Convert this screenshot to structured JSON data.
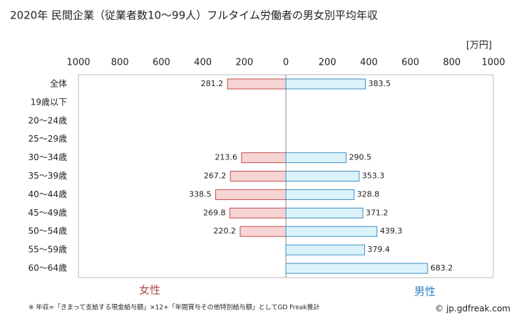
{
  "chart_data": {
    "type": "butterfly",
    "title": "2020年 民間企業（従業者数10〜99人）フルタイム労働者の男女別平均年収",
    "unit": "[万円]",
    "categories": [
      "全体",
      "19歳以下",
      "20〜24歳",
      "25〜29歳",
      "30〜34歳",
      "35〜39歳",
      "40〜44歳",
      "45〜49歳",
      "50〜54歳",
      "55〜59歳",
      "60〜64歳"
    ],
    "series": [
      {
        "name": "女性",
        "side": "left",
        "color": "#f7d4d4",
        "edge": "#c0504d",
        "label_color": "#b04848",
        "values": [
          281.2,
          null,
          null,
          null,
          213.6,
          267.2,
          338.5,
          269.8,
          220.2,
          null,
          null
        ]
      },
      {
        "name": "男性",
        "side": "right",
        "color": "#dcf2fb",
        "edge": "#3b8fc4",
        "label_color": "#2f7fbf",
        "values": [
          383.5,
          null,
          null,
          null,
          290.5,
          353.3,
          328.8,
          371.2,
          439.3,
          379.4,
          683.2
        ]
      }
    ],
    "xlim": [
      0,
      1000
    ],
    "xticks": [
      0,
      200,
      400,
      600,
      800,
      1000
    ],
    "footnote": "※ 年収=「きまって支給する現金給与額」×12+「年間賞与その他特別給与額」としてGD Freak推計",
    "source": "© jp.gdfreak.com"
  }
}
